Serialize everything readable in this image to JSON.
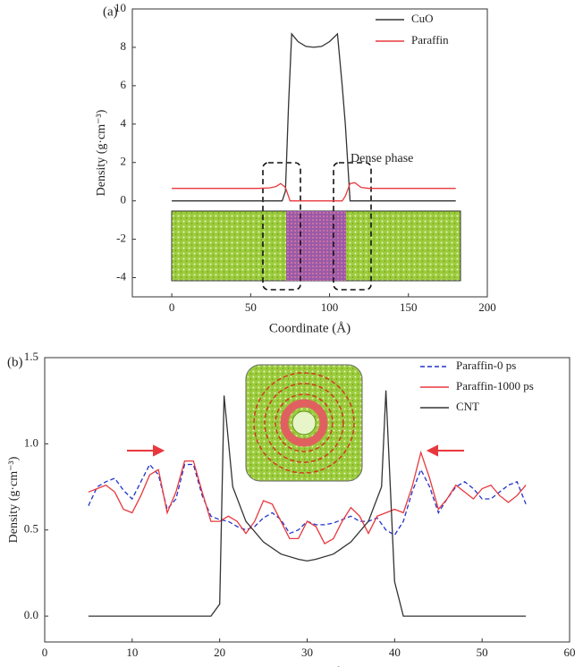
{
  "chart_data": [
    {
      "type": "line",
      "title": "(a)",
      "xlabel": "Coordinate (Å)",
      "ylabel": "Density (g·cm⁻³)",
      "annotation": "Dense phase",
      "xlim": [
        -25,
        200
      ],
      "xticks": [
        0,
        50,
        100,
        150,
        200
      ],
      "ylim": [
        -5,
        10
      ],
      "yticks": [
        -4,
        -2,
        0,
        2,
        4,
        6,
        8,
        10
      ],
      "series": [
        {
          "name": "CuO",
          "color": "#333333",
          "dash": false,
          "x": [
            0,
            70,
            72,
            74,
            76,
            80,
            85,
            90,
            95,
            100,
            105,
            108,
            110,
            113,
            180
          ],
          "values": [
            0,
            0,
            0.5,
            5,
            8.7,
            8.3,
            8.05,
            8.0,
            8.05,
            8.3,
            8.7,
            6,
            4,
            0,
            0
          ]
        },
        {
          "name": "Paraffin",
          "color": "#e8383d",
          "dash": false,
          "x": [
            0,
            55,
            62,
            66,
            69,
            72,
            75,
            108,
            110,
            113,
            116,
            120,
            125,
            180
          ],
          "values": [
            0.65,
            0.65,
            0.68,
            0.75,
            0.9,
            0.7,
            0,
            0,
            0.25,
            0.9,
            0.95,
            0.7,
            0.65,
            0.65
          ]
        }
      ]
    },
    {
      "type": "line",
      "title": "(b)",
      "xlabel": "Coordinate (Å)",
      "ylabel": "Density (g·cm⁻³)",
      "xlim": [
        0,
        60
      ],
      "xticks": [
        0,
        10,
        20,
        30,
        40,
        50,
        60
      ],
      "ylim": [
        -0.15,
        1.5
      ],
      "yticks": [
        {
          "value": 0,
          "label": "0.0"
        },
        0.5,
        {
          "value": 1,
          "label": "1.0"
        },
        1.5
      ],
      "series": [
        {
          "name": "Paraffin-0 ps",
          "color": "#2233cc",
          "dash": true,
          "x": [
            5,
            6,
            7,
            8,
            9,
            10,
            11,
            12,
            13,
            14,
            15,
            16,
            17,
            18,
            19,
            20,
            21,
            22,
            23,
            24,
            25,
            26,
            27,
            28,
            29,
            30,
            31,
            32,
            33,
            34,
            35,
            36,
            37,
            38,
            39,
            40,
            41,
            42,
            43,
            44,
            45,
            46,
            47,
            48,
            49,
            50,
            51,
            52,
            53,
            54,
            55
          ],
          "values": [
            0.64,
            0.75,
            0.78,
            0.8,
            0.73,
            0.68,
            0.78,
            0.88,
            0.82,
            0.62,
            0.68,
            0.88,
            0.88,
            0.7,
            0.58,
            0.56,
            0.55,
            0.52,
            0.5,
            0.52,
            0.57,
            0.6,
            0.56,
            0.48,
            0.5,
            0.55,
            0.53,
            0.53,
            0.54,
            0.56,
            0.58,
            0.55,
            0.55,
            0.57,
            0.5,
            0.47,
            0.55,
            0.72,
            0.85,
            0.75,
            0.6,
            0.68,
            0.75,
            0.78,
            0.74,
            0.68,
            0.68,
            0.72,
            0.76,
            0.78,
            0.65
          ]
        },
        {
          "name": "Paraffin-1000 ps",
          "color": "#e8383d",
          "dash": false,
          "x": [
            5,
            6,
            7,
            8,
            9,
            10,
            11,
            12,
            13,
            14,
            15,
            16,
            17,
            18,
            19,
            20,
            21,
            22,
            23,
            24,
            25,
            26,
            27,
            28,
            29,
            30,
            31,
            32,
            33,
            34,
            35,
            36,
            37,
            38,
            39,
            40,
            41,
            42,
            43,
            44,
            45,
            46,
            47,
            48,
            49,
            50,
            51,
            52,
            53,
            54,
            55
          ],
          "values": [
            0.72,
            0.74,
            0.76,
            0.72,
            0.62,
            0.6,
            0.7,
            0.82,
            0.85,
            0.6,
            0.72,
            0.9,
            0.9,
            0.72,
            0.55,
            0.55,
            0.58,
            0.55,
            0.48,
            0.55,
            0.67,
            0.65,
            0.55,
            0.45,
            0.45,
            0.55,
            0.52,
            0.42,
            0.45,
            0.55,
            0.63,
            0.58,
            0.48,
            0.58,
            0.6,
            0.62,
            0.6,
            0.75,
            0.95,
            0.8,
            0.62,
            0.68,
            0.76,
            0.72,
            0.68,
            0.74,
            0.76,
            0.7,
            0.66,
            0.7,
            0.76
          ]
        },
        {
          "name": "CNT",
          "color": "#333333",
          "dash": false,
          "x": [
            5,
            19,
            20,
            20.5,
            21.5,
            23,
            25,
            27,
            29,
            30,
            31,
            33,
            35,
            37,
            38.5,
            39,
            40,
            41,
            55
          ],
          "values": [
            0,
            0,
            0.07,
            1.28,
            0.75,
            0.55,
            0.43,
            0.36,
            0.33,
            0.32,
            0.33,
            0.36,
            0.43,
            0.55,
            0.75,
            1.31,
            0.2,
            0,
            0
          ]
        }
      ]
    }
  ]
}
